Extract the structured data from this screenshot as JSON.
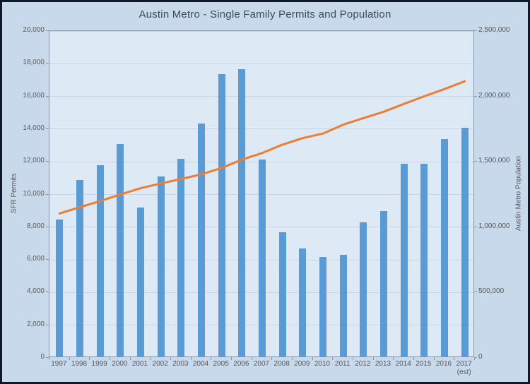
{
  "title": "Austin Metro - Single Family Permits and Population",
  "colors": {
    "bar": "#5B9BD5",
    "line": "#ED7D31",
    "outer_background": "#c7d9ea",
    "plot_background": "#dde9f4",
    "frame_border": "#0d1a2b",
    "plot_border": "#8496aa",
    "gridline": "#c9d5e2",
    "axis_text": "#595959",
    "title_text": "#3f4a55"
  },
  "chart_data": {
    "type": "bar",
    "title": "Austin Metro - Single Family Permits and Population",
    "categories": [
      "1997",
      "1998",
      "1999",
      "2000",
      "2001",
      "2002",
      "2003",
      "2004",
      "2005",
      "2006",
      "2007",
      "2008",
      "2009",
      "2010",
      "2011",
      "2012",
      "2013",
      "2014",
      "2015",
      "2016",
      "2017"
    ],
    "last_category_note": "(est)",
    "series": [
      {
        "name": "SFR Permits",
        "type": "bar",
        "axis": "left",
        "values": [
          8400,
          10800,
          11700,
          13000,
          9100,
          11000,
          12100,
          14250,
          17300,
          17600,
          12050,
          7600,
          6600,
          6100,
          6200,
          8200,
          8900,
          11800,
          11800,
          13300,
          14000
        ]
      },
      {
        "name": "Austin Metro Population",
        "type": "line",
        "axis": "right",
        "values": [
          1105000,
          1152000,
          1200000,
          1250000,
          1298000,
          1334000,
          1369000,
          1404000,
          1453000,
          1516000,
          1567000,
          1631000,
          1681000,
          1716000,
          1784000,
          1834000,
          1883000,
          1943000,
          2001000,
          2056000,
          2116000
        ]
      }
    ],
    "left_axis": {
      "label": "SFR Permits",
      "min": 0,
      "max": 20000,
      "step": 2000,
      "tick_labels": [
        "0",
        "2,000",
        "4,000",
        "6,000",
        "8,000",
        "10,000",
        "12,000",
        "14,000",
        "16,000",
        "18,000",
        "20,000"
      ]
    },
    "right_axis": {
      "label": "Austin Metro  Population",
      "min": 0,
      "max": 2500000,
      "step": 500000,
      "tick_labels": [
        "0",
        "500,000",
        "1,000,000",
        "1,500,000",
        "2,000,000",
        "2,500,000"
      ]
    },
    "grid": true,
    "legend": false
  }
}
